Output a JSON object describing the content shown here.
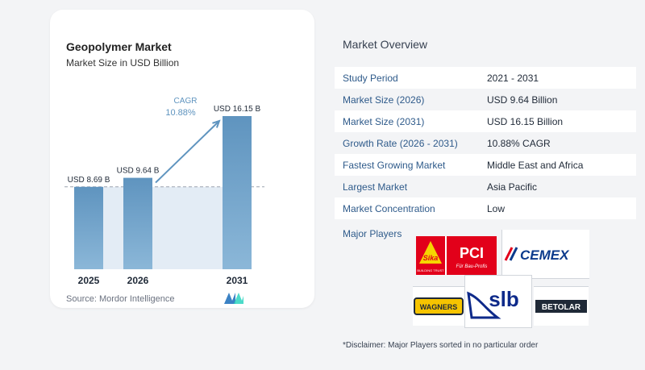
{
  "chart": {
    "title": "Geopolymer Market",
    "subtitle": "Market Size in USD Billion",
    "source": "Source:  Mordor Intelligence",
    "cagr_label": "CAGR",
    "cagr_value": "10.88%"
  },
  "chart_data": {
    "type": "bar",
    "title": "Geopolymer Market",
    "subtitle": "Market Size in USD Billion",
    "categories": [
      "2025",
      "2026",
      "2031"
    ],
    "values": [
      8.69,
      9.64,
      16.15
    ],
    "data_labels": [
      "USD 8.69 B",
      "USD 9.64 B",
      "USD 16.15 B"
    ],
    "ylim": [
      0,
      16.15
    ],
    "grid": false,
    "reference_line": 8.69,
    "annotation": "CAGR 10.88%",
    "colors": {
      "bar": "#5f94bf",
      "bar_light": "#8bb7d8",
      "area": "#e3ecf5",
      "arrow": "#5f94bf",
      "cagr_text": "#5f94bf"
    }
  },
  "overview": {
    "title": "Market Overview",
    "rows": [
      {
        "label": "Study Period",
        "value": "2021 - 2031"
      },
      {
        "label": "Market Size (2026)",
        "value": "USD 9.64 Billion"
      },
      {
        "label": "Market Size (2031)",
        "value": "USD 16.15 Billion"
      },
      {
        "label": "Growth Rate (2026 - 2031)",
        "value": "10.88% CAGR"
      },
      {
        "label": "Fastest Growing Market",
        "value": "Middle East and Africa"
      },
      {
        "label": "Largest Market",
        "value": "Asia Pacific"
      },
      {
        "label": "Market Concentration",
        "value": "Low"
      }
    ],
    "players_label": "Major Players",
    "players": [
      {
        "name": "Sika PCI",
        "text_a": "Sika",
        "text_b": "PCI",
        "tag_a": "BUILDING TRUST",
        "tag_b": "Für Bau-Profis"
      },
      {
        "name": "CEMEX",
        "text": "CEMEX"
      },
      {
        "name": "Wagners",
        "text": "WAGNERS"
      },
      {
        "name": "SLB",
        "text": "slb"
      },
      {
        "name": "Betolar",
        "text": "BETOLAR"
      }
    ],
    "disclaimer": "*Disclaimer: Major Players sorted in no particular order"
  }
}
